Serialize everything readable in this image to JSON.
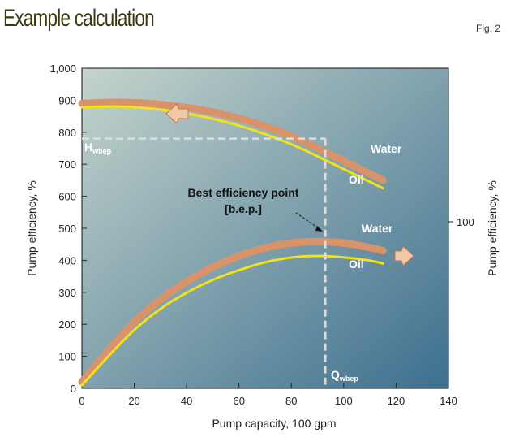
{
  "title": "Example calculation",
  "figure_label": "Fig. 2",
  "colors": {
    "water": "#d9936a",
    "oil": "#f2e21a",
    "bg_start": "#c4d4cc",
    "bg_end": "#3d6f8f"
  },
  "chart_data": {
    "type": "line",
    "xlabel": "Pump capacity, 100 gpm",
    "ylabel": "Pump efficiency, %",
    "ylabel_right": "Pump efficiency, %",
    "xlim": [
      0,
      140
    ],
    "ylim": [
      0,
      1000
    ],
    "xticks": [
      "0",
      "20",
      "40",
      "60",
      "80",
      "100",
      "120",
      "140"
    ],
    "yticks": [
      "0",
      "100",
      "200",
      "300",
      "400",
      "500",
      "600",
      "700",
      "800",
      "900",
      "1,000"
    ],
    "yticks_right": [
      "100"
    ],
    "series": [
      {
        "name": "Water",
        "group": "head",
        "x": [
          0,
          15,
          30,
          45,
          60,
          75,
          85,
          95,
          105,
          115
        ],
        "y": [
          890,
          895,
          888,
          872,
          845,
          805,
          770,
          730,
          690,
          650
        ]
      },
      {
        "name": "Oil",
        "group": "head",
        "x": [
          0,
          15,
          30,
          45,
          60,
          75,
          85,
          95,
          105,
          115
        ],
        "y": [
          878,
          882,
          872,
          852,
          822,
          780,
          745,
          705,
          665,
          625
        ]
      },
      {
        "name": "Water",
        "group": "efficiency",
        "x": [
          0,
          10,
          20,
          30,
          40,
          50,
          60,
          70,
          80,
          90,
          100,
          110,
          115
        ],
        "y": [
          20,
          120,
          210,
          280,
          335,
          380,
          415,
          440,
          455,
          460,
          455,
          440,
          430
        ]
      },
      {
        "name": "Oil",
        "group": "efficiency",
        "x": [
          0,
          10,
          20,
          30,
          40,
          50,
          60,
          70,
          80,
          90,
          100,
          110,
          115
        ],
        "y": [
          10,
          100,
          185,
          250,
          300,
          340,
          370,
          395,
          410,
          415,
          410,
          400,
          390
        ]
      }
    ],
    "annotations": {
      "bep_label_1": "Best efficiency point",
      "bep_label_2": "[b.e.p.]",
      "h_label": "H",
      "h_sub": "wbep",
      "q_label": "Q",
      "q_sub": "wbep",
      "bep_x": 93,
      "bep_head": 780
    }
  }
}
